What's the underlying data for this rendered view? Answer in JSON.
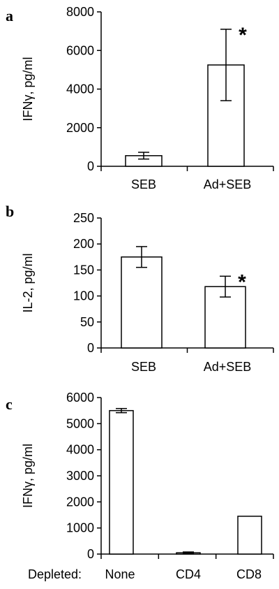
{
  "chart_data": [
    {
      "panel_letter": "a",
      "type": "bar",
      "ylabel": "IFNγ, pg/ml",
      "ylim": [
        0,
        8000
      ],
      "yticks": [
        0,
        2000,
        4000,
        6000,
        8000
      ],
      "categories": [
        "SEB",
        "Ad+SEB"
      ],
      "values": [
        550,
        5250
      ],
      "errors": [
        175,
        1850
      ],
      "significance": [
        "",
        "*"
      ]
    },
    {
      "panel_letter": "b",
      "type": "bar",
      "ylabel": "IL-2, pg/ml",
      "ylim": [
        0,
        250
      ],
      "yticks": [
        0,
        50,
        100,
        150,
        200,
        250
      ],
      "categories": [
        "SEB",
        "Ad+SEB"
      ],
      "values": [
        175,
        118
      ],
      "errors": [
        20,
        20
      ],
      "significance": [
        "",
        "*"
      ]
    },
    {
      "panel_letter": "c",
      "type": "bar",
      "ylabel": "IFNγ, pg/ml",
      "ylim": [
        0,
        6000
      ],
      "yticks": [
        0,
        1000,
        2000,
        3000,
        4000,
        5000,
        6000
      ],
      "category_prefix": "Depleted:",
      "categories": [
        "None",
        "CD4",
        "CD8"
      ],
      "values": [
        5500,
        50,
        1450
      ],
      "errors": [
        80,
        30,
        0
      ],
      "significance": [
        "",
        "",
        ""
      ]
    }
  ]
}
